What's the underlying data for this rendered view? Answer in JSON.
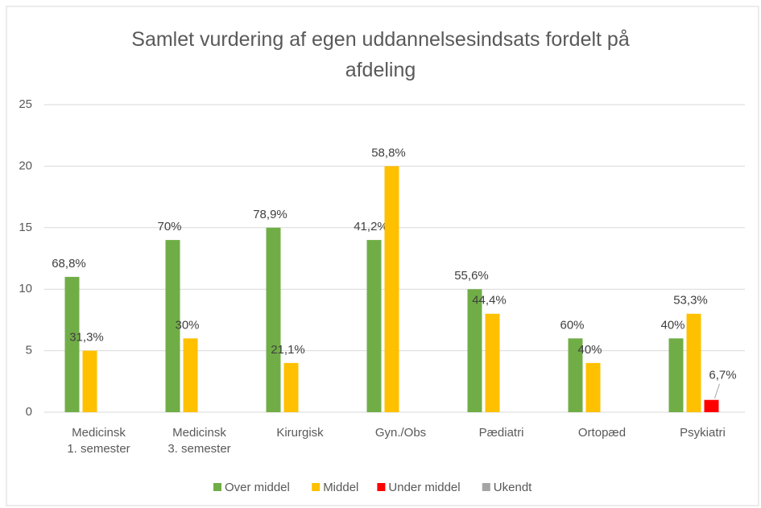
{
  "chart_data": {
    "type": "bar",
    "title": "Samlet vurdering af egen uddannelsesindsats fordelt på\nafdeling",
    "categories": [
      "Medicinsk\n1. semester",
      "Medicinsk\n3. semester",
      "Kirurgisk",
      "Gyn./Obs",
      "Pædiatri",
      "Ortopæd",
      "Psykiatri"
    ],
    "series": [
      {
        "name": "Over middel",
        "color": "#70ad47",
        "values": [
          11,
          14,
          15,
          14,
          10,
          6,
          6
        ],
        "percent_labels": [
          "68,8%",
          "70%",
          "78,9%",
          "41,2%",
          "55,6%",
          "60%",
          "40%"
        ]
      },
      {
        "name": "Middel",
        "color": "#ffc000",
        "values": [
          5,
          6,
          4,
          20,
          8,
          4,
          8
        ],
        "percent_labels": [
          "31,3%",
          "30%",
          "21,1%",
          "58,8%",
          "44,4%",
          "40%",
          "53,3%"
        ]
      },
      {
        "name": "Under middel",
        "color": "#ff0000",
        "values": [
          null,
          null,
          null,
          null,
          null,
          null,
          1
        ],
        "percent_labels": [
          null,
          null,
          null,
          null,
          null,
          null,
          "6,7%"
        ]
      },
      {
        "name": "Ukendt",
        "color": "#a5a5a5",
        "values": [
          null,
          null,
          null,
          null,
          null,
          null,
          null
        ],
        "percent_labels": [
          null,
          null,
          null,
          null,
          null,
          null,
          null
        ]
      }
    ],
    "ylim": [
      0,
      25
    ],
    "yticks": [
      0,
      5,
      10,
      15,
      20,
      25
    ],
    "grid": true,
    "legend": "bottom"
  }
}
